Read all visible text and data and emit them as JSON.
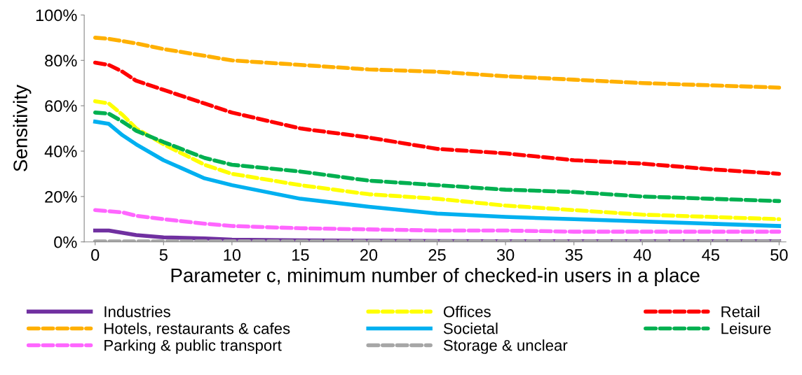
{
  "chart_data": {
    "type": "line",
    "xlabel": "Parameter c, minimum number of checked-in users in a place",
    "ylabel": "Sensitivity",
    "x": [
      0,
      1,
      2,
      3,
      5,
      8,
      10,
      15,
      20,
      25,
      30,
      35,
      40,
      45,
      50
    ],
    "xlim": [
      -0.8,
      50.5
    ],
    "xticks": [
      0,
      5,
      10,
      15,
      20,
      25,
      30,
      35,
      40,
      45,
      50
    ],
    "ylim": [
      0,
      100
    ],
    "yticks": [
      {
        "value": 0,
        "label": "0%"
      },
      {
        "value": 20,
        "label": "20%"
      },
      {
        "value": 40,
        "label": "40%"
      },
      {
        "value": 60,
        "label": "60%"
      },
      {
        "value": 80,
        "label": "80%"
      },
      {
        "value": 100,
        "label": "100%"
      }
    ],
    "grid": false,
    "legend": "bottom",
    "marker": "none",
    "series": [
      {
        "name": "Industries",
        "color": "#7030a0",
        "line_style": "solid",
        "values": [
          5,
          5,
          4,
          3,
          2,
          1.5,
          1,
          0.7,
          0.5,
          0.4,
          0.3,
          0.3,
          0.3,
          0.3,
          0.3
        ]
      },
      {
        "name": "Hotels, restaurants & cafes",
        "color": "#ffb000",
        "line_style": "dashed",
        "values": [
          90,
          89.5,
          88.5,
          87.5,
          85,
          82,
          80,
          78,
          76,
          75,
          73,
          71.5,
          70,
          69,
          68
        ]
      },
      {
        "name": "Parking & public transport",
        "color": "#ff66ff",
        "line_style": "dashed",
        "values": [
          14,
          13.5,
          13,
          11.5,
          10,
          8,
          7,
          6,
          5.5,
          5,
          5,
          4.5,
          4.5,
          4.5,
          4.5
        ]
      },
      {
        "name": "Offices",
        "color": "#ffff00",
        "line_style": "dashed",
        "values": [
          62,
          61,
          56,
          50,
          43,
          34,
          30,
          25,
          21,
          19,
          16,
          14,
          12,
          11,
          10
        ]
      },
      {
        "name": "Societal",
        "color": "#00b0f0",
        "line_style": "solid",
        "values": [
          53,
          52,
          47,
          43,
          36,
          28,
          25,
          19,
          15.5,
          12.5,
          11,
          10,
          9,
          8,
          7
        ]
      },
      {
        "name": "Storage & unclear",
        "color": "#a6a6a6",
        "line_style": "dashed",
        "values": [
          0.2,
          0.2,
          0.2,
          0.2,
          0.2,
          0.2,
          0.2,
          0.2,
          0.2,
          0.2,
          0.2,
          0.2,
          0.2,
          0.2,
          0.2
        ]
      },
      {
        "name": "Retail",
        "color": "#ff0000",
        "line_style": "dashed",
        "values": [
          79,
          78,
          75,
          71,
          67,
          61,
          57,
          50,
          46,
          41,
          39,
          36,
          34.5,
          32,
          30
        ]
      },
      {
        "name": "Leisure",
        "color": "#00b050",
        "line_style": "dashed",
        "values": [
          57,
          56.5,
          53,
          49,
          44,
          37,
          34,
          31,
          27,
          25,
          23,
          22,
          20,
          19,
          18
        ]
      }
    ]
  }
}
